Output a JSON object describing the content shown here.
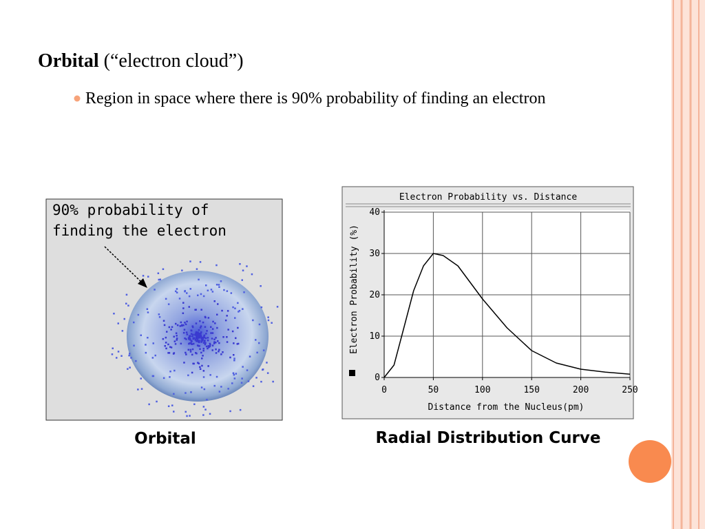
{
  "slide": {
    "title_bold": "Orbital",
    "title_rest": " (“electron cloud”)",
    "bullet": "Region in space where there is 90% probability of finding an electron",
    "orbital_label_1": "90% probability of",
    "orbital_label_2": "finding the electron",
    "caption_left": "Orbital",
    "caption_right": "Radial Distribution Curve"
  },
  "chart_data": {
    "type": "line",
    "title": "Electron Probability vs. Distance",
    "x_label": "Distance from the Nucleus(pm)",
    "y_label": "Electron Probability (%)",
    "x": [
      0,
      10,
      20,
      30,
      40,
      50,
      60,
      75,
      100,
      125,
      150,
      175,
      200,
      225,
      250
    ],
    "series": [
      {
        "name": "Electron Probability",
        "color": "#000000",
        "values": [
          0,
          3,
          12,
          21,
          27,
          30,
          29.5,
          27,
          19,
          12,
          6.5,
          3.5,
          2,
          1.3,
          0.8
        ]
      }
    ],
    "xlim": [
      0,
      250
    ],
    "ylim": [
      0,
      40
    ],
    "xticks": [
      0,
      50,
      100,
      150,
      200,
      250
    ],
    "yticks": [
      0,
      10,
      20,
      30,
      40
    ],
    "grid": true
  }
}
